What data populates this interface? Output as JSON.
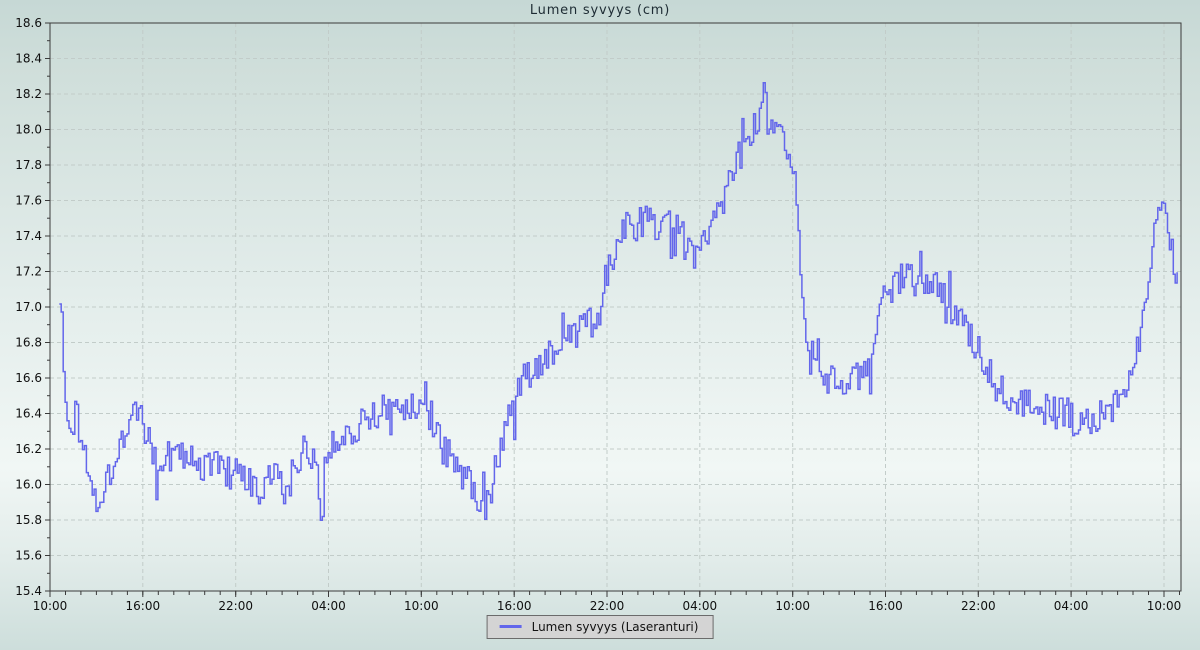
{
  "chart_data": {
    "type": "line",
    "title": "Lumen syvyys (cm)",
    "legend": {
      "label": "Lumen syvyys (Laseranturi)",
      "position": "bottom-center"
    },
    "y_axis": {
      "min": 15.4,
      "max": 18.6,
      "major_step": 0.2,
      "minor_step": 0.1,
      "tick_labels": [
        "15.4",
        "15.6",
        "15.8",
        "16.0",
        "16.2",
        "16.4",
        "16.6",
        "16.8",
        "17.0",
        "17.2",
        "17.4",
        "17.6",
        "17.8",
        "18.0",
        "18.2",
        "18.4",
        "18.6"
      ]
    },
    "x_axis": {
      "span_hours": 73.1,
      "minor_step_hours": 1,
      "major_ticks": [
        {
          "t": 0,
          "label": "10:00"
        },
        {
          "t": 6,
          "label": "16:00"
        },
        {
          "t": 12,
          "label": "22:00"
        },
        {
          "t": 18,
          "label": "04:00"
        },
        {
          "t": 24,
          "label": "10:00"
        },
        {
          "t": 30,
          "label": "16:00"
        },
        {
          "t": 36,
          "label": "22:00"
        },
        {
          "t": 42,
          "label": "04:00"
        },
        {
          "t": 48,
          "label": "10:00"
        },
        {
          "t": 54,
          "label": "16:00"
        },
        {
          "t": 60,
          "label": "22:00"
        },
        {
          "t": 66,
          "label": "04:00"
        },
        {
          "t": 72,
          "label": "10:00"
        }
      ]
    },
    "grid": {
      "dashed": true,
      "major_only": true
    },
    "colors": {
      "line": "#6366eb",
      "grid": "#c2ccc9",
      "axis": "#3a3a3a",
      "tick_text": "#101010",
      "title_text": "#1d2b33",
      "legend_bg": "#d4d4d4",
      "legend_border": "#6b6b6b",
      "bg_top": "#c6d8d5",
      "bg_mid": "#f1f7f5",
      "bg_bottom": "#cddedb"
    },
    "series": [
      {
        "name": "Lumen syvyys (Laseranturi)",
        "unit": "cm",
        "start_hour": 0.6,
        "end_hour": 72.85,
        "samples_per_hour": 8,
        "noise_amplitude": 0.1,
        "noise_spike_probability": 0.06,
        "noise_spike_factor": 2.2,
        "noise_seed": 1337,
        "trend": [
          [
            0.6,
            17.08
          ],
          [
            0.72,
            16.92
          ],
          [
            0.85,
            16.65
          ],
          [
            1.0,
            16.42
          ],
          [
            1.2,
            16.28
          ],
          [
            1.45,
            16.32
          ],
          [
            1.65,
            16.5
          ],
          [
            1.85,
            16.3
          ],
          [
            2.2,
            16.18
          ],
          [
            2.6,
            16.08
          ],
          [
            2.95,
            15.95
          ],
          [
            3.3,
            15.93
          ],
          [
            3.7,
            16.02
          ],
          [
            4.1,
            16.15
          ],
          [
            4.6,
            16.28
          ],
          [
            5.1,
            16.36
          ],
          [
            5.6,
            16.4
          ],
          [
            6.1,
            16.3
          ],
          [
            6.6,
            16.18
          ],
          [
            6.95,
            16.08
          ],
          [
            7.4,
            16.12
          ],
          [
            8.0,
            16.18
          ],
          [
            8.6,
            16.15
          ],
          [
            9.3,
            16.13
          ],
          [
            10.0,
            16.1
          ],
          [
            10.8,
            16.12
          ],
          [
            11.6,
            16.06
          ],
          [
            12.4,
            16.03
          ],
          [
            13.1,
            15.98
          ],
          [
            13.6,
            15.92
          ],
          [
            14.1,
            16.04
          ],
          [
            14.7,
            16.02
          ],
          [
            15.15,
            15.94
          ],
          [
            15.6,
            16.06
          ],
          [
            16.1,
            16.16
          ],
          [
            16.7,
            16.2
          ],
          [
            17.3,
            16.15
          ],
          [
            17.42,
            15.76
          ],
          [
            17.55,
            15.78
          ],
          [
            17.68,
            16.12
          ],
          [
            18.1,
            16.22
          ],
          [
            18.8,
            16.26
          ],
          [
            19.5,
            16.32
          ],
          [
            20.2,
            16.36
          ],
          [
            21.0,
            16.4
          ],
          [
            21.9,
            16.42
          ],
          [
            22.8,
            16.44
          ],
          [
            23.4,
            16.42
          ],
          [
            24.0,
            16.44
          ],
          [
            24.6,
            16.38
          ],
          [
            25.3,
            16.22
          ],
          [
            26.0,
            16.12
          ],
          [
            26.8,
            16.05
          ],
          [
            27.5,
            15.96
          ],
          [
            28.2,
            15.9
          ],
          [
            28.7,
            16.0
          ],
          [
            29.2,
            16.22
          ],
          [
            29.8,
            16.42
          ],
          [
            30.4,
            16.55
          ],
          [
            31.2,
            16.66
          ],
          [
            32.0,
            16.72
          ],
          [
            33.0,
            16.78
          ],
          [
            34.0,
            16.84
          ],
          [
            34.8,
            16.9
          ],
          [
            35.5,
            17.0
          ],
          [
            36.1,
            17.25
          ],
          [
            36.7,
            17.4
          ],
          [
            37.5,
            17.46
          ],
          [
            38.3,
            17.48
          ],
          [
            39.2,
            17.44
          ],
          [
            40.0,
            17.5
          ],
          [
            40.6,
            17.46
          ],
          [
            41.2,
            17.3
          ],
          [
            41.9,
            17.28
          ],
          [
            42.6,
            17.42
          ],
          [
            43.3,
            17.58
          ],
          [
            44.0,
            17.76
          ],
          [
            44.8,
            17.92
          ],
          [
            45.5,
            18.0
          ],
          [
            45.95,
            18.1
          ],
          [
            46.1,
            18.2
          ],
          [
            46.35,
            18.02
          ],
          [
            46.9,
            17.95
          ],
          [
            47.5,
            17.9
          ],
          [
            47.85,
            17.82
          ],
          [
            48.1,
            17.72
          ],
          [
            48.3,
            17.45
          ],
          [
            48.55,
            17.1
          ],
          [
            48.9,
            16.85
          ],
          [
            49.5,
            16.75
          ],
          [
            50.1,
            16.62
          ],
          [
            50.8,
            16.55
          ],
          [
            51.6,
            16.55
          ],
          [
            52.4,
            16.62
          ],
          [
            53.1,
            16.72
          ],
          [
            53.55,
            16.95
          ],
          [
            53.75,
            17.1
          ],
          [
            54.4,
            17.1
          ],
          [
            55.1,
            17.16
          ],
          [
            56.0,
            17.16
          ],
          [
            56.9,
            17.12
          ],
          [
            57.7,
            17.06
          ],
          [
            58.5,
            16.96
          ],
          [
            59.3,
            16.84
          ],
          [
            60.1,
            16.74
          ],
          [
            61.0,
            16.62
          ],
          [
            61.9,
            16.52
          ],
          [
            62.8,
            16.46
          ],
          [
            63.7,
            16.44
          ],
          [
            64.6,
            16.42
          ],
          [
            65.5,
            16.4
          ],
          [
            66.4,
            16.36
          ],
          [
            67.1,
            16.32
          ],
          [
            67.8,
            16.38
          ],
          [
            68.5,
            16.44
          ],
          [
            69.2,
            16.52
          ],
          [
            69.8,
            16.66
          ],
          [
            70.3,
            16.82
          ],
          [
            70.8,
            17.05
          ],
          [
            71.2,
            17.3
          ],
          [
            71.5,
            17.48
          ],
          [
            71.75,
            17.52
          ],
          [
            72.0,
            17.48
          ],
          [
            72.3,
            17.4
          ],
          [
            72.55,
            17.3
          ],
          [
            72.85,
            17.16
          ]
        ]
      }
    ]
  }
}
